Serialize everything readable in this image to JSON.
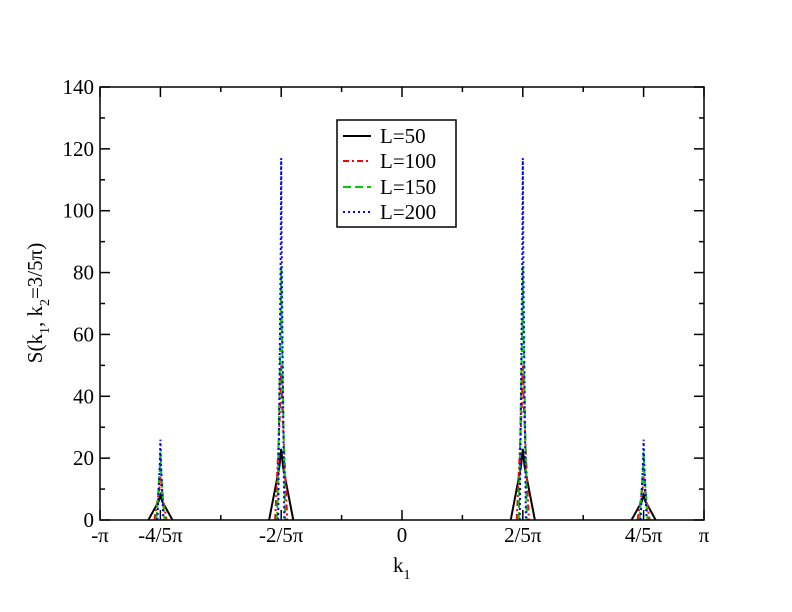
{
  "chart_data": {
    "type": "line",
    "xlabel": "k",
    "xlabel_sub": "1",
    "ylabel_parts": [
      "S(k",
      "1",
      ", k",
      "2",
      "=3/5π)"
    ],
    "xlim": [
      -3.14159,
      3.14159
    ],
    "ylim": [
      0,
      140
    ],
    "y_ticks": [
      0,
      20,
      40,
      60,
      80,
      100,
      120,
      140
    ],
    "x_ticks": [
      {
        "value": -3.14159,
        "label": "-π"
      },
      {
        "value": -2.51327,
        "label": "-4/5π"
      },
      {
        "value": -1.25664,
        "label": "-2/5π"
      },
      {
        "value": 0,
        "label": "0"
      },
      {
        "value": 1.25664,
        "label": "2/5π"
      },
      {
        "value": 2.51327,
        "label": "4/5π"
      },
      {
        "value": 3.14159,
        "label": "π"
      }
    ],
    "grid": false,
    "legend_position": "top-center",
    "peak_positions": [
      -2.51327,
      -1.25664,
      1.25664,
      2.51327
    ],
    "series": [
      {
        "name": "L=50",
        "color": "#000000",
        "dash": "solid",
        "peaks": [
          8,
          23,
          23,
          8
        ],
        "half_width": 0.12566
      },
      {
        "name": "L=100",
        "color": "#ff0000",
        "dash": "dashdot",
        "peaks": [
          14,
          50,
          50,
          14
        ],
        "half_width": 0.06283
      },
      {
        "name": "L=150",
        "color": "#00cc00",
        "dash": "dash",
        "peaks": [
          22,
          82,
          82,
          22
        ],
        "half_width": 0.04189
      },
      {
        "name": "L=200",
        "color": "#0000ff",
        "dash": "dot",
        "peaks": [
          26,
          117,
          117,
          26
        ],
        "half_width": 0.03142
      }
    ]
  }
}
